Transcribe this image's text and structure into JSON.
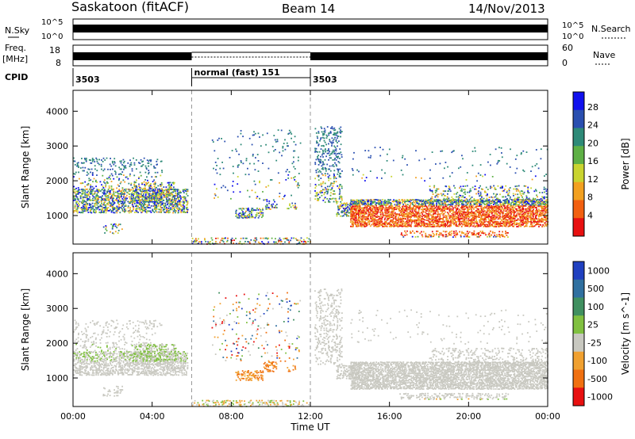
{
  "header": {
    "station": "Saskatoon (fitACF)",
    "beam": "Beam 14",
    "date": "14/Nov/2013"
  },
  "noise_panel": {
    "left_label": "N.Sky",
    "right_label": "N.Search",
    "left_ticks": [
      "10^5",
      "10^0"
    ],
    "right_ticks": [
      "10^5",
      "10^0"
    ]
  },
  "freq_panel": {
    "left_label_1": "Freq.",
    "left_label_2": "[MHz]",
    "left_ticks": [
      "18",
      "8"
    ],
    "right_label": "Nave",
    "right_ticks": [
      "60",
      "0"
    ]
  },
  "cpid": {
    "label": "CPID",
    "segments": [
      {
        "start": 0,
        "end": 6,
        "text": "3503"
      },
      {
        "start": 6,
        "end": 12,
        "text": "normal (fast) 151"
      },
      {
        "start": 12,
        "end": 24,
        "text": "3503"
      }
    ]
  },
  "chart_data": [
    {
      "type": "heatmap",
      "quantity": "Power",
      "ylabel": "Slant Range [km]",
      "ylim": [
        180,
        4600
      ],
      "xlim": [
        0,
        24
      ],
      "yticks": [
        "1000",
        "2000",
        "3000",
        "4000"
      ],
      "colorbar_label": "Power [dB]",
      "colorbar_ticks": [
        "28",
        "24",
        "20",
        "16",
        "12",
        "8",
        "4"
      ],
      "colors": [
        "#1010ee",
        "#2a4fb0",
        "#2e8a78",
        "#5eb045",
        "#c9d430",
        "#f2a020",
        "#f26010",
        "#e81010"
      ]
    },
    {
      "type": "heatmap",
      "quantity": "Velocity",
      "ylabel": "Slant Range [km]",
      "ylim": [
        180,
        4600
      ],
      "xlim": [
        0,
        24
      ],
      "yticks": [
        "1000",
        "2000",
        "3000",
        "4000"
      ],
      "xticks": [
        "00:00",
        "04:00",
        "08:00",
        "12:00",
        "16:00",
        "20:00",
        "00:00"
      ],
      "xlabel": "Time UT",
      "colorbar_label": "Velocity [m s^-1]",
      "colorbar_ticks": [
        "1000",
        "500",
        "100",
        "25",
        "-25",
        "-100",
        "-500",
        "-1000"
      ],
      "colors": [
        "#2040c0",
        "#3070a0",
        "#409060",
        "#80c040",
        "#c8c8c0",
        "#f0a030",
        "#f07010",
        "#e81010"
      ]
    }
  ]
}
